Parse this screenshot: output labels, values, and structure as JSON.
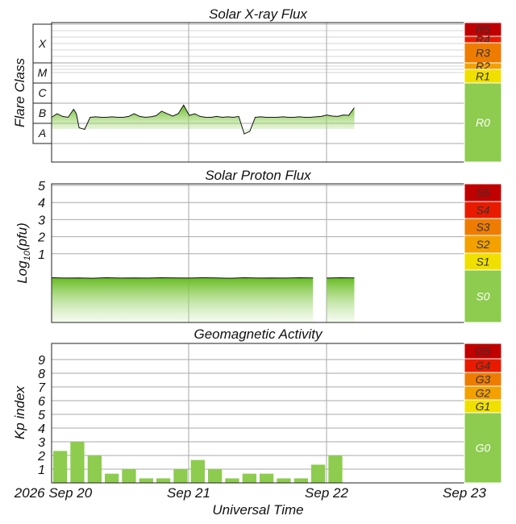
{
  "colors": {
    "green": "#8dcc4e",
    "yellow": "#f0e000",
    "orange": "#f3a100",
    "dark_orange": "#ee7c00",
    "red": "#e81b00",
    "dark_red": "#c00000",
    "grid": "#aaaaaa",
    "trace": "#111111"
  },
  "x_axis": {
    "label": "Universal Time",
    "ticks": [
      "2026 Sep 20",
      "Sep 21",
      "Sep 22",
      "Sep 23"
    ]
  },
  "chart_data": [
    {
      "type": "line",
      "title": "Solar X-ray Flux",
      "ylabel": "Flare Class",
      "y_scale": "log",
      "class_labels": [
        "X",
        "M",
        "C",
        "B",
        "A"
      ],
      "scale_levels": [
        {
          "label": "R5",
          "color": "#c00000"
        },
        {
          "label": "R4",
          "color": "#e81b00"
        },
        {
          "label": "R3",
          "color": "#ee7c00"
        },
        {
          "label": "R2",
          "color": "#f3a100"
        },
        {
          "label": "R1",
          "color": "#f0e000"
        },
        {
          "label": "R0",
          "color": "#8dcc4e"
        }
      ],
      "x": [
        0,
        0.04,
        0.08,
        0.12,
        0.16,
        0.18,
        0.2,
        0.24,
        0.28,
        0.32,
        0.36,
        0.4,
        0.44,
        0.48,
        0.52,
        0.56,
        0.6,
        0.64,
        0.68,
        0.72,
        0.76,
        0.8,
        0.84,
        0.88,
        0.92,
        0.96,
        1.0,
        1.04,
        1.08,
        1.12,
        1.16,
        1.2,
        1.24,
        1.28,
        1.32,
        1.36,
        1.4,
        1.44,
        1.48,
        1.52,
        1.56,
        1.6,
        1.64,
        1.68,
        1.72,
        1.76,
        1.8,
        1.84,
        1.88,
        1.92,
        1.96,
        2.0,
        2.04,
        2.08,
        2.12,
        2.16,
        2.2
      ],
      "values": [
        "B2",
        "B3",
        "B2",
        "B2",
        "B5",
        "B3",
        "A6",
        "A5",
        "B2",
        "B2",
        "B2",
        "B2",
        "B2",
        "B2",
        "B2",
        "B2",
        "B3",
        "B2",
        "B2",
        "B2",
        "B2",
        "B4",
        "B3",
        "B2",
        "B3",
        "B8",
        "B2",
        "B3",
        "B2",
        "B2",
        "B2",
        "B2",
        "B2",
        "B2",
        "B2",
        "B2",
        "A3",
        "A4",
        "B2",
        "B2",
        "B2",
        "B2",
        "B2",
        "B2",
        "B2",
        "B2",
        "B2",
        "B2",
        "B2",
        "B2",
        "B2",
        "B3",
        "B2",
        "B2",
        "B3",
        "B2",
        "B6"
      ],
      "y": [
        2e-07,
        3e-07,
        2.2e-07,
        2e-07,
        5e-07,
        3e-07,
        6e-08,
        5e-08,
        2e-07,
        2.1e-07,
        2e-07,
        2e-07,
        2.1e-07,
        2e-07,
        2e-07,
        2.2e-07,
        3e-07,
        2.2e-07,
        2e-07,
        2.1e-07,
        2.4e-07,
        4e-07,
        3e-07,
        2.3e-07,
        3e-07,
        8e-07,
        2.5e-07,
        3e-07,
        2.2e-07,
        2e-07,
        2e-07,
        2.2e-07,
        2e-07,
        2.1e-07,
        2e-07,
        2.2e-07,
        3e-08,
        4e-08,
        2e-07,
        2.1e-07,
        2e-07,
        2e-07,
        2e-07,
        2.1e-07,
        2e-07,
        2e-07,
        2.1e-07,
        2e-07,
        2e-07,
        2.1e-07,
        2.2e-07,
        2.6e-07,
        2.3e-07,
        2.2e-07,
        2.6e-07,
        2.5e-07,
        6e-07
      ]
    },
    {
      "type": "line",
      "title": "Solar Proton Flux",
      "ylabel": "Log10(pfu)",
      "ylabel_parts": [
        "Log",
        "10",
        "(pfu)"
      ],
      "yticks": [
        "1",
        "2",
        "3",
        "4",
        "5"
      ],
      "ylim": [
        -1.6,
        6
      ],
      "scale_levels": [
        {
          "label": "S5",
          "color": "#c00000"
        },
        {
          "label": "S4",
          "color": "#e81b00"
        },
        {
          "label": "S3",
          "color": "#ee7c00"
        },
        {
          "label": "S2",
          "color": "#f3a100"
        },
        {
          "label": "S1",
          "color": "#f0e000"
        },
        {
          "label": "S0",
          "color": "#8dcc4e"
        }
      ],
      "x": [
        0,
        0.1,
        0.2,
        0.3,
        0.4,
        0.5,
        0.6,
        0.7,
        0.8,
        0.9,
        1.0,
        1.1,
        1.2,
        1.3,
        1.4,
        1.5,
        1.6,
        1.7,
        1.8,
        1.9,
        1.94,
        1.98,
        2.0,
        2.1,
        2.2
      ],
      "y": [
        -0.4,
        -0.42,
        -0.41,
        -0.43,
        -0.4,
        -0.42,
        -0.41,
        -0.42,
        -0.4,
        -0.41,
        -0.42,
        -0.4,
        -0.41,
        -0.43,
        -0.4,
        -0.42,
        -0.41,
        -0.42,
        -0.4,
        -0.41,
        null,
        null,
        -0.42,
        -0.4,
        -0.41
      ]
    },
    {
      "type": "bar",
      "title": "Geomagnetic Activity",
      "ylabel": "Kp index",
      "yticks": [
        "1",
        "2",
        "3",
        "4",
        "5",
        "6",
        "7",
        "8",
        "9"
      ],
      "ylim": [
        0,
        10
      ],
      "scale_levels": [
        {
          "label": "G5",
          "color": "#c00000"
        },
        {
          "label": "G4",
          "color": "#e81b00"
        },
        {
          "label": "G3",
          "color": "#ee7c00"
        },
        {
          "label": "G2",
          "color": "#f3a100"
        },
        {
          "label": "G1",
          "color": "#f0e000"
        },
        {
          "label": "G0",
          "color": "#8dcc4e"
        }
      ],
      "x": [
        0,
        0.125,
        0.25,
        0.375,
        0.5,
        0.625,
        0.75,
        0.875,
        1.0,
        1.125,
        1.25,
        1.375,
        1.5,
        1.625,
        1.75,
        1.875,
        2.0,
        2.125
      ],
      "values": [
        2.33,
        3.0,
        2.0,
        0.67,
        1.0,
        0.33,
        0.33,
        1.0,
        1.67,
        1.0,
        0.33,
        0.67,
        0.67,
        0.33,
        0.33,
        1.33,
        2.0,
        0
      ]
    }
  ]
}
